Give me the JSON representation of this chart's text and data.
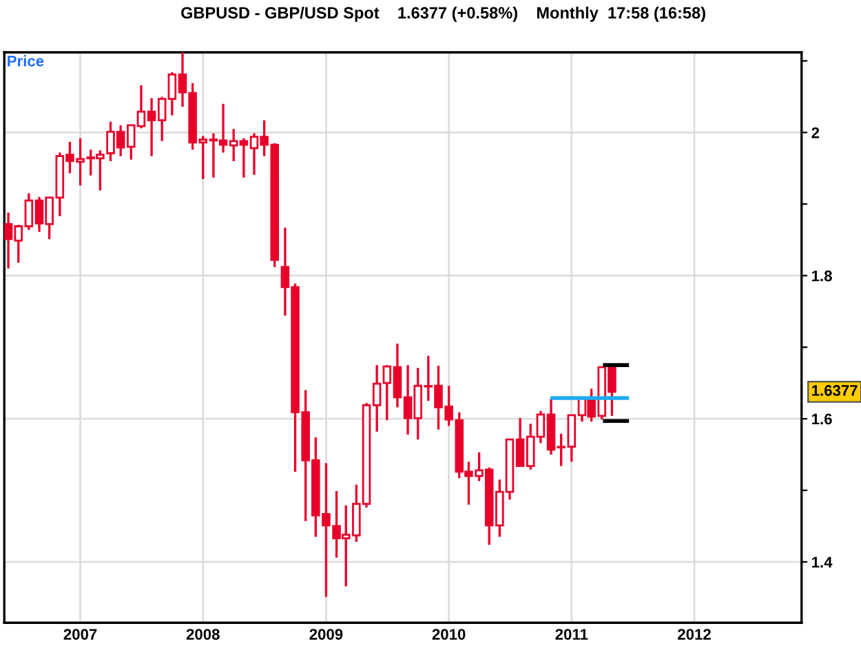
{
  "chart_data": {
    "type": "candlestick",
    "title": "GBPUSD - GBP/USD Spot    1.6377 (+0.58%)    Monthly  17:58 (16:58)",
    "ylabel": "Price",
    "x": [
      "2006-06",
      "2006-07",
      "2006-08",
      "2006-09",
      "2006-10",
      "2006-11",
      "2006-12",
      "2007-01",
      "2007-02",
      "2007-03",
      "2007-04",
      "2007-05",
      "2007-06",
      "2007-07",
      "2007-08",
      "2007-09",
      "2007-10",
      "2007-11",
      "2007-12",
      "2008-01",
      "2008-02",
      "2008-03",
      "2008-04",
      "2008-05",
      "2008-06",
      "2008-07",
      "2008-08",
      "2008-09",
      "2008-10",
      "2008-11",
      "2008-12",
      "2009-01",
      "2009-02",
      "2009-03",
      "2009-04",
      "2009-05",
      "2009-06",
      "2009-07",
      "2009-08",
      "2009-09",
      "2009-10",
      "2009-11",
      "2009-12",
      "2010-01",
      "2010-02",
      "2010-03",
      "2010-04",
      "2010-05",
      "2010-06",
      "2010-07",
      "2010-08",
      "2010-09",
      "2010-10",
      "2010-11",
      "2010-12",
      "2011-01",
      "2011-02",
      "2011-03",
      "2011-04",
      "2011-05"
    ],
    "series": [
      {
        "color": "#e8002a",
        "ohlc": [
          [
            1.872,
            1.888,
            1.81,
            1.851
          ],
          [
            1.849,
            1.871,
            1.818,
            1.869
          ],
          [
            1.869,
            1.915,
            1.864,
            1.905
          ],
          [
            1.905,
            1.91,
            1.861,
            1.873
          ],
          [
            1.872,
            1.909,
            1.851,
            1.909
          ],
          [
            1.909,
            1.972,
            1.883,
            1.967
          ],
          [
            1.969,
            1.987,
            1.943,
            1.96
          ],
          [
            1.959,
            1.992,
            1.926,
            1.963
          ],
          [
            1.964,
            1.976,
            1.94,
            1.965
          ],
          [
            1.964,
            1.975,
            1.919,
            1.969
          ],
          [
            1.971,
            2.015,
            1.96,
            2.001
          ],
          [
            2.001,
            2.01,
            1.967,
            1.979
          ],
          [
            1.98,
            2.01,
            1.962,
            2.01
          ],
          [
            2.009,
            2.066,
            2.006,
            2.029
          ],
          [
            2.029,
            2.048,
            1.967,
            2.017
          ],
          [
            2.017,
            2.05,
            1.988,
            2.047
          ],
          [
            2.047,
            2.084,
            2.024,
            2.081
          ],
          [
            2.081,
            2.117,
            2.036,
            2.056
          ],
          [
            2.055,
            2.069,
            1.976,
            1.986
          ],
          [
            1.986,
            1.995,
            1.935,
            1.99
          ],
          [
            1.989,
            1.999,
            1.937,
            1.99
          ],
          [
            1.989,
            2.04,
            1.972,
            1.983
          ],
          [
            1.982,
            2.005,
            1.96,
            1.988
          ],
          [
            1.988,
            1.992,
            1.937,
            1.983
          ],
          [
            1.978,
            1.999,
            1.941,
            1.994
          ],
          [
            1.994,
            2.017,
            1.967,
            1.983
          ],
          [
            1.983,
            1.985,
            1.812,
            1.822
          ],
          [
            1.812,
            1.867,
            1.744,
            1.784
          ],
          [
            1.784,
            1.789,
            1.526,
            1.609
          ],
          [
            1.609,
            1.64,
            1.457,
            1.542
          ],
          [
            1.542,
            1.574,
            1.435,
            1.465
          ],
          [
            1.467,
            1.538,
            1.351,
            1.451
          ],
          [
            1.45,
            1.499,
            1.406,
            1.433
          ],
          [
            1.433,
            1.479,
            1.366,
            1.438
          ],
          [
            1.437,
            1.508,
            1.428,
            1.481
          ],
          [
            1.481,
            1.622,
            1.476,
            1.619
          ],
          [
            1.619,
            1.675,
            1.582,
            1.649
          ],
          [
            1.65,
            1.675,
            1.598,
            1.673
          ],
          [
            1.672,
            1.705,
            1.616,
            1.63
          ],
          [
            1.63,
            1.675,
            1.578,
            1.601
          ],
          [
            1.601,
            1.671,
            1.571,
            1.646
          ],
          [
            1.645,
            1.688,
            1.625,
            1.645
          ],
          [
            1.646,
            1.674,
            1.585,
            1.616
          ],
          [
            1.617,
            1.646,
            1.59,
            1.599
          ],
          [
            1.598,
            1.609,
            1.517,
            1.526
          ],
          [
            1.526,
            1.54,
            1.48,
            1.52
          ],
          [
            1.52,
            1.553,
            1.513,
            1.528
          ],
          [
            1.529,
            1.532,
            1.424,
            1.451
          ],
          [
            1.451,
            1.515,
            1.435,
            1.498
          ],
          [
            1.498,
            1.572,
            1.487,
            1.571
          ],
          [
            1.571,
            1.601,
            1.533,
            1.534
          ],
          [
            1.534,
            1.593,
            1.529,
            1.575
          ],
          [
            1.575,
            1.611,
            1.566,
            1.606
          ],
          [
            1.606,
            1.628,
            1.55,
            1.557
          ],
          [
            1.56,
            1.579,
            1.534,
            1.56
          ],
          [
            1.561,
            1.606,
            1.54,
            1.605
          ],
          [
            1.605,
            1.63,
            1.596,
            1.629
          ],
          [
            1.629,
            1.642,
            1.596,
            1.603
          ],
          [
            1.604,
            1.673,
            1.599,
            1.672
          ],
          [
            1.672,
            1.675,
            1.604,
            1.6377
          ]
        ]
      },
      {
        "type": "line",
        "color": "#1eaaf1",
        "x": [
          "2010-11-05",
          "2011-06-15"
        ],
        "values": [
          1.629,
          1.629
        ]
      },
      {
        "type": "line",
        "color": "#000000",
        "x": [
          "2011-04-10",
          "2011-06-15"
        ],
        "values": [
          1.675,
          1.675
        ]
      },
      {
        "type": "line",
        "color": "#000000",
        "x": [
          "2011-04-10",
          "2011-06-15"
        ],
        "values": [
          1.597,
          1.597
        ]
      }
    ],
    "annotations": [
      "1.6377"
    ],
    "xlim": [
      "2006-05-20",
      "2012-11-15"
    ],
    "xticks": [
      {
        "value": "2007-01",
        "label": "2007"
      },
      {
        "value": "2008-01",
        "label": "2008"
      },
      {
        "value": "2009-01",
        "label": "2009"
      },
      {
        "value": "2010-01",
        "label": "2010"
      },
      {
        "value": "2011-01",
        "label": "2011"
      },
      {
        "value": "2012-01",
        "label": "2012"
      }
    ],
    "ylim": [
      1.315,
      2.112
    ],
    "yticks": [
      1.4,
      {
        "value": 1.5,
        "label": null
      },
      1.6,
      {
        "value": 1.7,
        "label": null
      },
      1.8,
      {
        "value": 1.9,
        "label": null
      },
      2,
      {
        "value": 2.1,
        "label": null
      }
    ],
    "grid": true,
    "legend": false
  }
}
